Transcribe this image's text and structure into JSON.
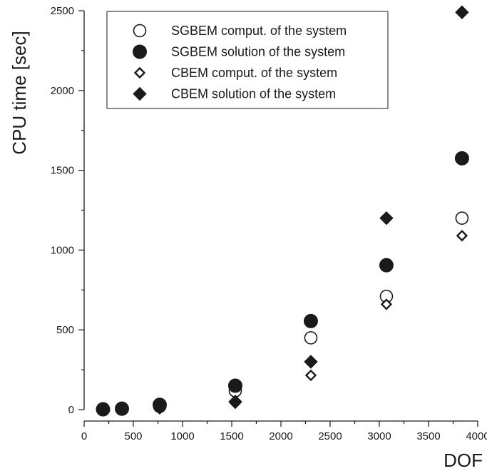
{
  "chart_data": {
    "type": "scatter",
    "xlabel": "DOF",
    "ylabel": "CPU time [sec]",
    "xlim": [
      0,
      4000
    ],
    "ylim": [
      0,
      2500
    ],
    "x_ticks": [
      0,
      500,
      1000,
      1500,
      2000,
      2500,
      3000,
      3500,
      4000
    ],
    "y_ticks": [
      0,
      500,
      1000,
      1500,
      2000,
      2500
    ],
    "x_minor_step": 250,
    "y_minor_step": 250,
    "grid": false,
    "legend_position": "top",
    "series": [
      {
        "name": "SGBEM comput. of the system",
        "marker": "open-circle",
        "color": "#1a1a1a",
        "x": [
          192,
          384,
          768,
          1536,
          2304,
          3072,
          3840
        ],
        "y": [
          1,
          4,
          20,
          118,
          450,
          710,
          1200
        ]
      },
      {
        "name": "SGBEM solution of the system",
        "marker": "filled-circle",
        "color": "#1a1a1a",
        "x": [
          192,
          384,
          768,
          1536,
          2304,
          3072,
          3840
        ],
        "y": [
          2,
          6,
          30,
          150,
          555,
          905,
          1575
        ]
      },
      {
        "name": "CBEM comput. of the system",
        "marker": "open-diamond",
        "color": "#1a1a1a",
        "x": [
          192,
          384,
          768,
          1536,
          2304,
          3072,
          3840
        ],
        "y": [
          0,
          2,
          8,
          40,
          215,
          660,
          1090
        ]
      },
      {
        "name": "CBEM solution of the system",
        "marker": "filled-diamond",
        "color": "#1a1a1a",
        "x": [
          192,
          384,
          768,
          1536,
          2304,
          3072,
          3840
        ],
        "y": [
          1,
          3,
          12,
          50,
          300,
          1200,
          2490
        ]
      }
    ]
  }
}
